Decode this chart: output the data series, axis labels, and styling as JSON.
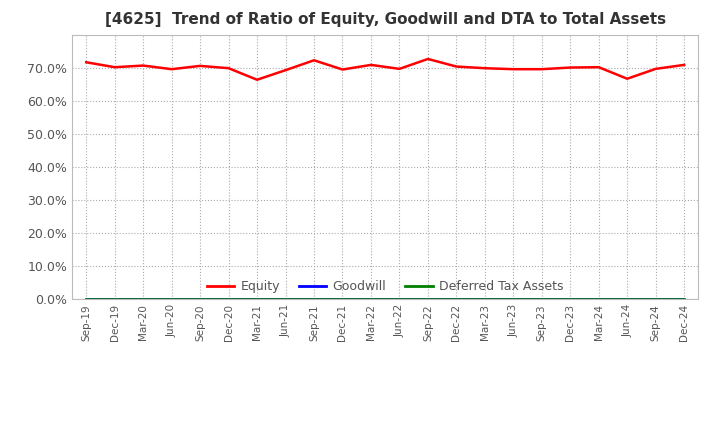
{
  "title": "[4625]  Trend of Ratio of Equity, Goodwill and DTA to Total Assets",
  "x_labels": [
    "Sep-19",
    "Dec-19",
    "Mar-20",
    "Jun-20",
    "Sep-20",
    "Dec-20",
    "Mar-21",
    "Jun-21",
    "Sep-21",
    "Dec-21",
    "Mar-22",
    "Jun-22",
    "Sep-22",
    "Dec-22",
    "Mar-23",
    "Jun-23",
    "Sep-23",
    "Dec-23",
    "Mar-24",
    "Jun-24",
    "Sep-24",
    "Dec-24"
  ],
  "equity": [
    0.718,
    0.703,
    0.708,
    0.697,
    0.707,
    0.7,
    0.665,
    0.694,
    0.724,
    0.696,
    0.71,
    0.698,
    0.728,
    0.705,
    0.7,
    0.697,
    0.697,
    0.702,
    0.703,
    0.668,
    0.698,
    0.71
  ],
  "goodwill": [
    0.0,
    0.0,
    0.0,
    0.0,
    0.0,
    0.0,
    0.0,
    0.0,
    0.0,
    0.0,
    0.0,
    0.0,
    0.0,
    0.0,
    0.0,
    0.0,
    0.0,
    0.0,
    0.0,
    0.0,
    0.0,
    0.0
  ],
  "dta": [
    0.0,
    0.0,
    0.0,
    0.0,
    0.0,
    0.0,
    0.0,
    0.0,
    0.0,
    0.0,
    0.0,
    0.0,
    0.0,
    0.0,
    0.0,
    0.0,
    0.0,
    0.0,
    0.0,
    0.0,
    0.0,
    0.0
  ],
  "equity_color": "#ff0000",
  "goodwill_color": "#0000ff",
  "dta_color": "#008000",
  "ylim": [
    0.0,
    0.8
  ],
  "yticks": [
    0.0,
    0.1,
    0.2,
    0.3,
    0.4,
    0.5,
    0.6,
    0.7
  ],
  "background_color": "#ffffff",
  "plot_bg_color": "#ffffff",
  "grid_color": "#aaaaaa",
  "title_fontsize": 11,
  "legend_labels": [
    "Equity",
    "Goodwill",
    "Deferred Tax Assets"
  ],
  "legend_text_color": "#555555",
  "axis_label_color": "#555555"
}
